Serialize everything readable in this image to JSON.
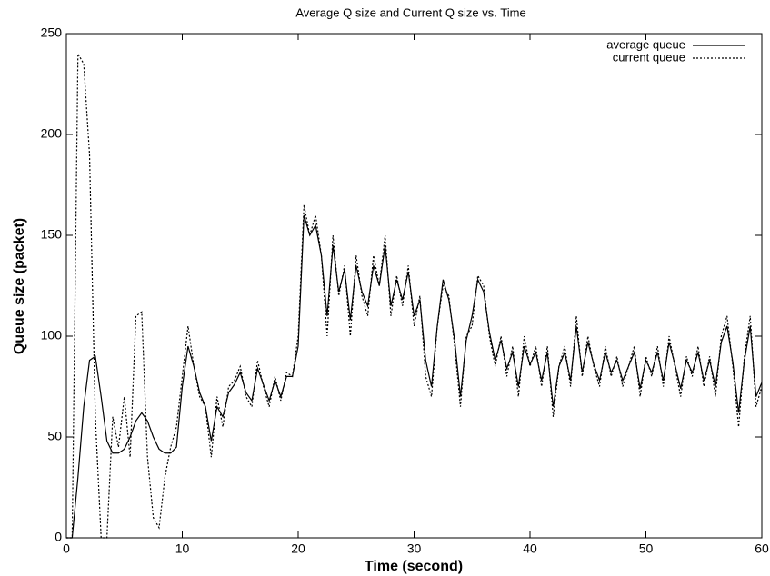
{
  "chart_data": {
    "type": "line",
    "title": "Average Q size and Current Q size vs. Time",
    "x_label": "Time (second)",
    "y_label": "Queue size (packet)",
    "xlim": [
      0,
      60
    ],
    "ylim": [
      0,
      250
    ],
    "xticks": [
      0,
      10,
      20,
      30,
      40,
      50,
      60
    ],
    "yticks": [
      0,
      50,
      100,
      150,
      200,
      250
    ],
    "legend": "upper right",
    "x": [
      0,
      0.5,
      1,
      1.5,
      2,
      2.5,
      3,
      3.5,
      4,
      4.5,
      5,
      5.5,
      6,
      6.5,
      7,
      7.5,
      8,
      8.5,
      9,
      9.5,
      10,
      10.5,
      11,
      11.5,
      12,
      12.5,
      13,
      13.5,
      14,
      14.5,
      15,
      15.5,
      16,
      16.5,
      17,
      17.5,
      18,
      18.5,
      19,
      19.5,
      20,
      20.5,
      21,
      21.5,
      22,
      22.5,
      23,
      23.5,
      24,
      24.5,
      25,
      25.5,
      26,
      26.5,
      27,
      27.5,
      28,
      28.5,
      29,
      29.5,
      30,
      30.5,
      31,
      31.5,
      32,
      32.5,
      33,
      33.5,
      34,
      34.5,
      35,
      35.5,
      36,
      36.5,
      37,
      37.5,
      38,
      38.5,
      39,
      39.5,
      40,
      40.5,
      41,
      41.5,
      42,
      42.5,
      43,
      43.5,
      44,
      44.5,
      45,
      45.5,
      46,
      46.5,
      47,
      47.5,
      48,
      48.5,
      49,
      49.5,
      50,
      50.5,
      51,
      51.5,
      52,
      52.5,
      53,
      53.5,
      54,
      54.5,
      55,
      55.5,
      56,
      56.5,
      57,
      57.5,
      58,
      58.5,
      59,
      59.5,
      60
    ],
    "series": [
      {
        "name": "average queue",
        "color": "#000000",
        "dash": "solid",
        "values": [
          0,
          0,
          30,
          65,
          88,
          90,
          70,
          48,
          42,
          42,
          44,
          50,
          58,
          62,
          58,
          50,
          44,
          42,
          42,
          45,
          75,
          95,
          85,
          72,
          65,
          48,
          65,
          60,
          72,
          76,
          82,
          72,
          68,
          84,
          76,
          68,
          78,
          70,
          80,
          80,
          95,
          160,
          150,
          155,
          140,
          110,
          145,
          122,
          133,
          108,
          135,
          122,
          115,
          135,
          125,
          145,
          115,
          128,
          118,
          132,
          110,
          118,
          88,
          75,
          105,
          128,
          118,
          98,
          70,
          98,
          110,
          128,
          122,
          102,
          88,
          98,
          84,
          92,
          75,
          95,
          86,
          92,
          78,
          92,
          65,
          85,
          92,
          78,
          105,
          82,
          97,
          86,
          78,
          92,
          82,
          88,
          78,
          85,
          92,
          74,
          88,
          82,
          92,
          78,
          97,
          86,
          74,
          88,
          82,
          92,
          78,
          88,
          75,
          97,
          105,
          87,
          62,
          88,
          105,
          70,
          77
        ]
      },
      {
        "name": "current queue",
        "color": "#000000",
        "dash": "dashed",
        "values": [
          0,
          0,
          240,
          235,
          190,
          60,
          0,
          0,
          60,
          45,
          70,
          40,
          110,
          112,
          40,
          10,
          5,
          30,
          45,
          55,
          80,
          105,
          85,
          70,
          65,
          40,
          70,
          55,
          75,
          78,
          85,
          70,
          65,
          88,
          75,
          65,
          80,
          68,
          82,
          80,
          100,
          165,
          150,
          160,
          140,
          100,
          150,
          120,
          135,
          100,
          140,
          120,
          110,
          140,
          125,
          150,
          110,
          130,
          115,
          135,
          105,
          120,
          80,
          70,
          105,
          125,
          120,
          95,
          65,
          100,
          105,
          130,
          125,
          100,
          85,
          100,
          80,
          95,
          70,
          100,
          85,
          95,
          75,
          95,
          60,
          85,
          95,
          75,
          110,
          80,
          100,
          85,
          75,
          95,
          80,
          90,
          75,
          85,
          95,
          70,
          90,
          80,
          95,
          75,
          100,
          85,
          70,
          90,
          80,
          95,
          75,
          90,
          70,
          100,
          110,
          85,
          55,
          90,
          110,
          65,
          75
        ]
      }
    ]
  }
}
